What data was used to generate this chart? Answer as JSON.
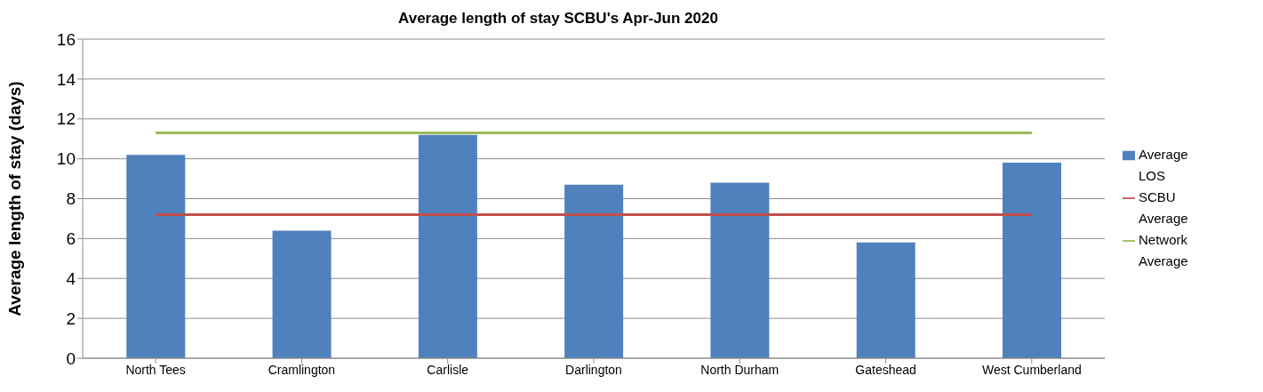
{
  "chart_data": {
    "type": "bar",
    "title": "Average length of stay SCBU's Apr-Jun 2020",
    "ylabel": "Average length of stay (days)",
    "categories": [
      "North Tees",
      "Cramlington",
      "Carlisle",
      "Darlington",
      "North Durham",
      "Gateshead",
      "West Cumberland"
    ],
    "series": [
      {
        "name": "Average LOS",
        "color": "#4f81bd",
        "values": [
          10.2,
          6.4,
          11.2,
          8.7,
          8.8,
          5.8,
          9.8
        ]
      },
      {
        "name": "SCBU Average",
        "type": "line",
        "color": "#c0504d",
        "values": [
          7.2,
          7.2,
          7.2,
          7.2,
          7.2,
          7.2,
          7.2
        ]
      },
      {
        "name": "Network Average",
        "type": "line",
        "color": "#9bbb59",
        "values": [
          11.3,
          11.3,
          11.3,
          11.3,
          11.3,
          11.3,
          11.3
        ]
      }
    ],
    "ylim": [
      0,
      16
    ],
    "yticks": [
      0,
      2,
      4,
      6,
      8,
      10,
      12,
      14,
      16
    ],
    "grid": "y",
    "legend": "right",
    "marker": "none",
    "line_style": "solid"
  }
}
